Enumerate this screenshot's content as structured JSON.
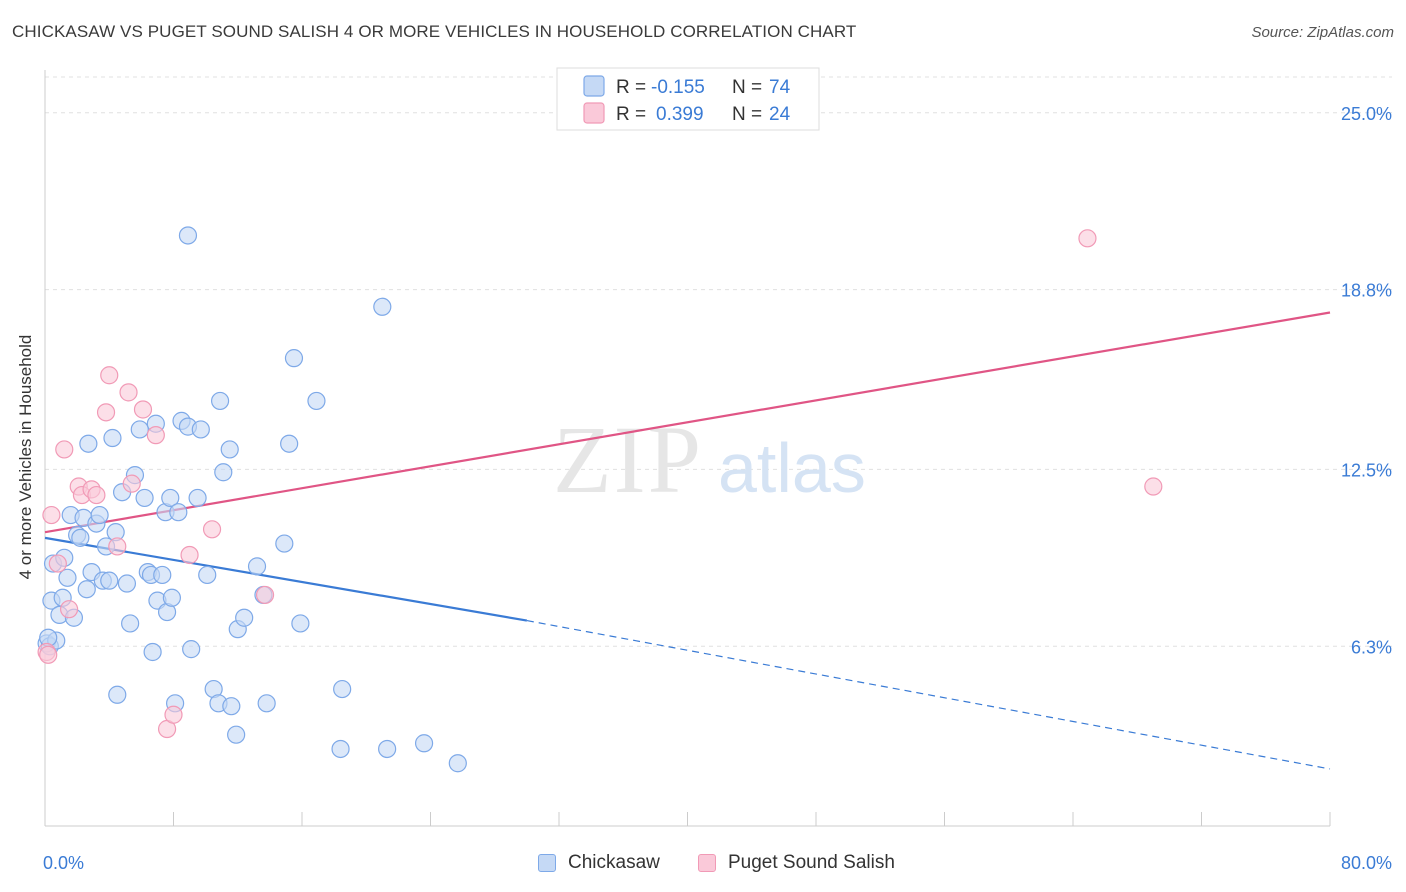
{
  "title": "CHICKASAW VS PUGET SOUND SALISH 4 OR MORE VEHICLES IN HOUSEHOLD CORRELATION CHART",
  "source": "Source: ZipAtlas.com",
  "watermark": {
    "part1": "ZIP",
    "part2": "atlas"
  },
  "legend_top": [
    {
      "r_label": "R =",
      "r_value": "-0.155",
      "n_label": "N =",
      "n_value": "74",
      "color": "#7ea9e8",
      "fill": "#c5d9f5"
    },
    {
      "r_label": "R =",
      "r_value": "0.399",
      "n_label": "N =",
      "n_value": "24",
      "color": "#f19ab6",
      "fill": "#fac9d9"
    }
  ],
  "legend_bottom": [
    {
      "label": "Chickasaw",
      "color": "#7ea9e8",
      "fill": "#c5d9f5"
    },
    {
      "label": "Puget Sound Salish",
      "color": "#f19ab6",
      "fill": "#fac9d9"
    }
  ],
  "chart_data": {
    "type": "scatter",
    "title": "CHICKASAW VS PUGET SOUND SALISH 4 OR MORE VEHICLES IN HOUSEHOLD CORRELATION CHART",
    "xlabel": "",
    "ylabel": "4 or more Vehicles in Household",
    "xlim": [
      0,
      80
    ],
    "ylim": [
      0,
      26.5
    ],
    "x_tick_labels": [
      "0.0%",
      "80.0%"
    ],
    "y_ticks": [
      6.3,
      12.5,
      18.8,
      25.0
    ],
    "y_tick_labels": [
      "6.3%",
      "12.5%",
      "18.8%",
      "25.0%"
    ],
    "grid": true,
    "legend_placement": "top-center",
    "series": [
      {
        "name": "Chickasaw",
        "color": "#3a7bd5",
        "fill": "#c5d9f5",
        "stroke": "#7ea9e8",
        "trend": {
          "x0": 0,
          "y0": 10.1,
          "x1": 30,
          "y1": 7.2,
          "dash_to_x": 80,
          "dash_to_y": 2.0
        },
        "points": [
          [
            0.1,
            6.4
          ],
          [
            0.3,
            6.3
          ],
          [
            0.4,
            7.9
          ],
          [
            0.5,
            9.2
          ],
          [
            0.7,
            6.5
          ],
          [
            0.9,
            7.4
          ],
          [
            1.1,
            8.0
          ],
          [
            1.2,
            9.4
          ],
          [
            1.4,
            8.7
          ],
          [
            1.6,
            10.9
          ],
          [
            1.8,
            7.3
          ],
          [
            2.0,
            10.2
          ],
          [
            2.2,
            10.1
          ],
          [
            2.4,
            10.8
          ],
          [
            2.6,
            8.3
          ],
          [
            2.7,
            13.4
          ],
          [
            2.9,
            8.9
          ],
          [
            3.2,
            10.6
          ],
          [
            3.4,
            10.9
          ],
          [
            3.6,
            8.6
          ],
          [
            3.8,
            9.8
          ],
          [
            4.0,
            8.6
          ],
          [
            4.2,
            13.6
          ],
          [
            4.4,
            10.3
          ],
          [
            4.5,
            4.6
          ],
          [
            4.8,
            11.7
          ],
          [
            5.1,
            8.5
          ],
          [
            5.3,
            7.1
          ],
          [
            5.6,
            12.3
          ],
          [
            5.9,
            13.9
          ],
          [
            6.2,
            11.5
          ],
          [
            6.4,
            8.9
          ],
          [
            6.6,
            8.8
          ],
          [
            6.7,
            6.1
          ],
          [
            6.9,
            14.1
          ],
          [
            7.0,
            7.9
          ],
          [
            7.3,
            8.8
          ],
          [
            7.5,
            11.0
          ],
          [
            7.6,
            7.5
          ],
          [
            7.8,
            11.5
          ],
          [
            7.9,
            8.0
          ],
          [
            8.1,
            4.3
          ],
          [
            8.3,
            11.0
          ],
          [
            8.5,
            14.2
          ],
          [
            8.9,
            20.7
          ],
          [
            8.9,
            14.0
          ],
          [
            9.1,
            6.2
          ],
          [
            9.5,
            11.5
          ],
          [
            9.7,
            13.9
          ],
          [
            10.1,
            8.8
          ],
          [
            10.5,
            4.8
          ],
          [
            10.8,
            4.3
          ],
          [
            10.9,
            14.9
          ],
          [
            11.1,
            12.4
          ],
          [
            11.5,
            13.2
          ],
          [
            11.6,
            4.2
          ],
          [
            11.9,
            3.2
          ],
          [
            12.0,
            6.9
          ],
          [
            12.4,
            7.3
          ],
          [
            13.2,
            9.1
          ],
          [
            13.6,
            8.1
          ],
          [
            13.8,
            4.3
          ],
          [
            14.9,
            9.9
          ],
          [
            15.2,
            13.4
          ],
          [
            15.5,
            16.4
          ],
          [
            15.9,
            7.1
          ],
          [
            16.9,
            14.9
          ],
          [
            18.4,
            2.7
          ],
          [
            18.5,
            4.8
          ],
          [
            21.0,
            18.2
          ],
          [
            21.3,
            2.7
          ],
          [
            23.6,
            2.9
          ],
          [
            25.7,
            2.2
          ],
          [
            0.2,
            6.6
          ]
        ]
      },
      {
        "name": "Puget Sound Salish",
        "color": "#e05585",
        "fill": "#fac9d9",
        "stroke": "#f19ab6",
        "trend": {
          "x0": 0,
          "y0": 10.3,
          "x1": 80,
          "y1": 18.0
        },
        "points": [
          [
            0.1,
            6.1
          ],
          [
            0.4,
            10.9
          ],
          [
            0.8,
            9.2
          ],
          [
            1.2,
            13.2
          ],
          [
            1.5,
            7.6
          ],
          [
            2.1,
            11.9
          ],
          [
            2.3,
            11.6
          ],
          [
            2.9,
            11.8
          ],
          [
            3.2,
            11.6
          ],
          [
            3.8,
            14.5
          ],
          [
            4.0,
            15.8
          ],
          [
            4.5,
            9.8
          ],
          [
            5.2,
            15.2
          ],
          [
            5.4,
            12.0
          ],
          [
            6.1,
            14.6
          ],
          [
            6.9,
            13.7
          ],
          [
            7.6,
            3.4
          ],
          [
            8.0,
            3.9
          ],
          [
            9.0,
            9.5
          ],
          [
            10.4,
            10.4
          ],
          [
            13.7,
            8.1
          ],
          [
            64.9,
            20.6
          ],
          [
            69.0,
            11.9
          ],
          [
            0.2,
            6.0
          ]
        ]
      }
    ]
  }
}
